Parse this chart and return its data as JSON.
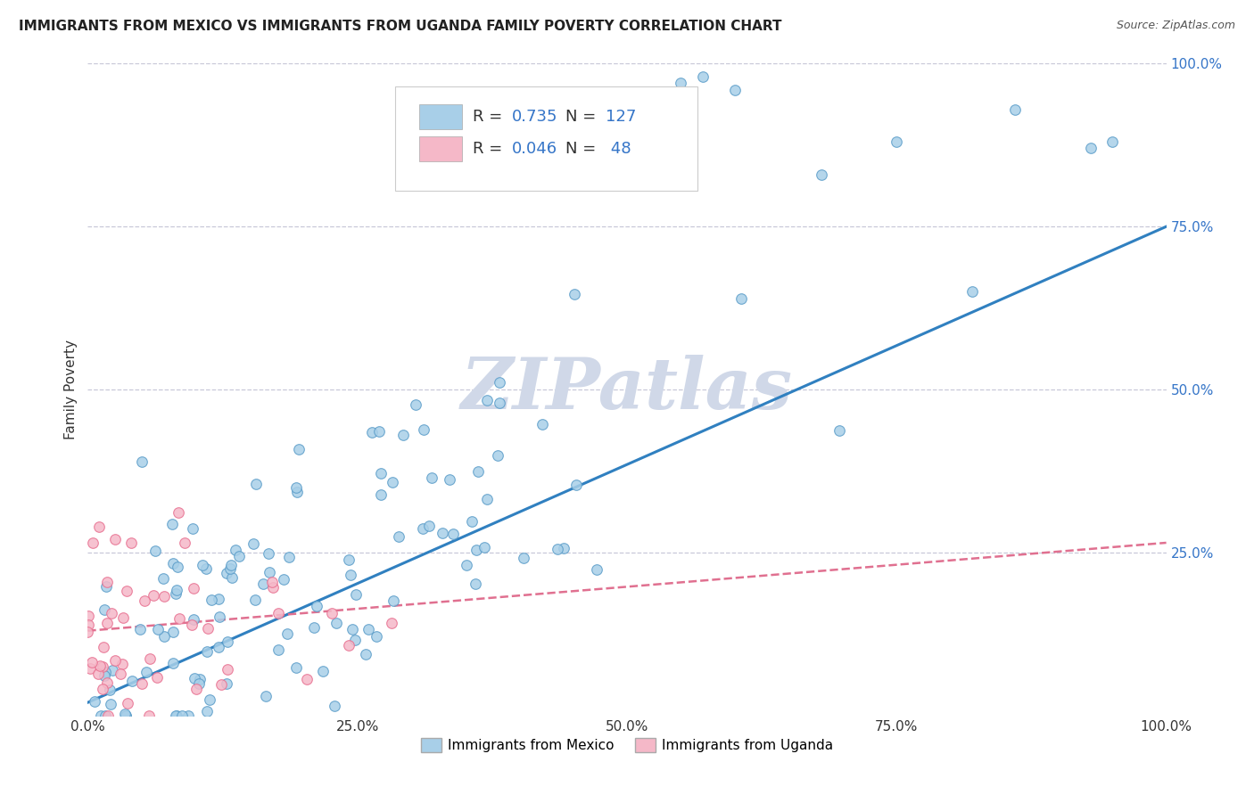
{
  "title": "IMMIGRANTS FROM MEXICO VS IMMIGRANTS FROM UGANDA FAMILY POVERTY CORRELATION CHART",
  "source": "Source: ZipAtlas.com",
  "ylabel": "Family Poverty",
  "legend_mexico": "Immigrants from Mexico",
  "legend_uganda": "Immigrants from Uganda",
  "r_mexico": 0.735,
  "n_mexico": 127,
  "r_uganda": 0.046,
  "n_uganda": 48,
  "color_mexico": "#a8cfe8",
  "color_uganda": "#f5b8c8",
  "edge_color_mexico": "#5b9dc9",
  "edge_color_uganda": "#e87090",
  "line_color_mexico": "#3080c0",
  "line_color_uganda": "#e07090",
  "text_color_blue": "#3575c8",
  "watermark": "ZIPatlas",
  "watermark_color": "#d0d8e8",
  "background_color": "#ffffff",
  "grid_color": "#c8c8d8",
  "xlim": [
    0,
    1.0
  ],
  "ylim": [
    0,
    1.0
  ],
  "xtick_labels": [
    "0.0%",
    "25.0%",
    "50.0%",
    "75.0%",
    "100.0%"
  ],
  "xtick_values": [
    0.0,
    0.25,
    0.5,
    0.75,
    1.0
  ],
  "ytick_right_labels": [
    "100.0%",
    "75.0%",
    "50.0%",
    "25.0%"
  ],
  "ytick_right_values": [
    1.0,
    0.75,
    0.5,
    0.25
  ]
}
